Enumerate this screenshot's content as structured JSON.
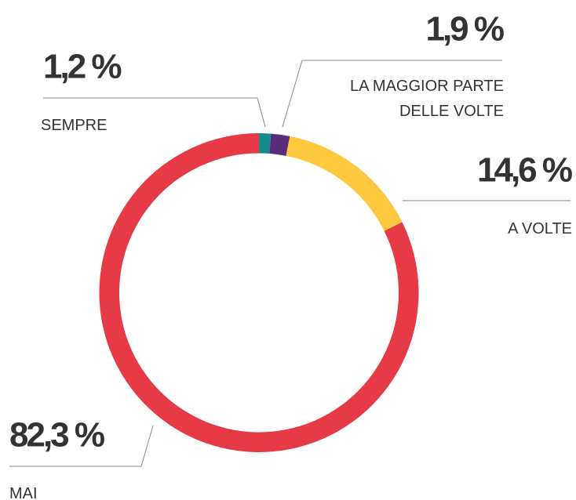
{
  "chart_data": {
    "type": "pie",
    "categories": [
      "SEMPRE",
      "LA MAGGIOR PARTE DELLE VOLTE",
      "A VOLTE",
      "MAI"
    ],
    "values": [
      1.2,
      1.9,
      14.6,
      82.3
    ],
    "value_labels": [
      "1,2 %",
      "1,9 %",
      "14,6 %",
      "82,3 %"
    ],
    "colors": [
      "#178a8c",
      "#5a2d7c",
      "#fec93e",
      "#e63a46"
    ]
  }
}
